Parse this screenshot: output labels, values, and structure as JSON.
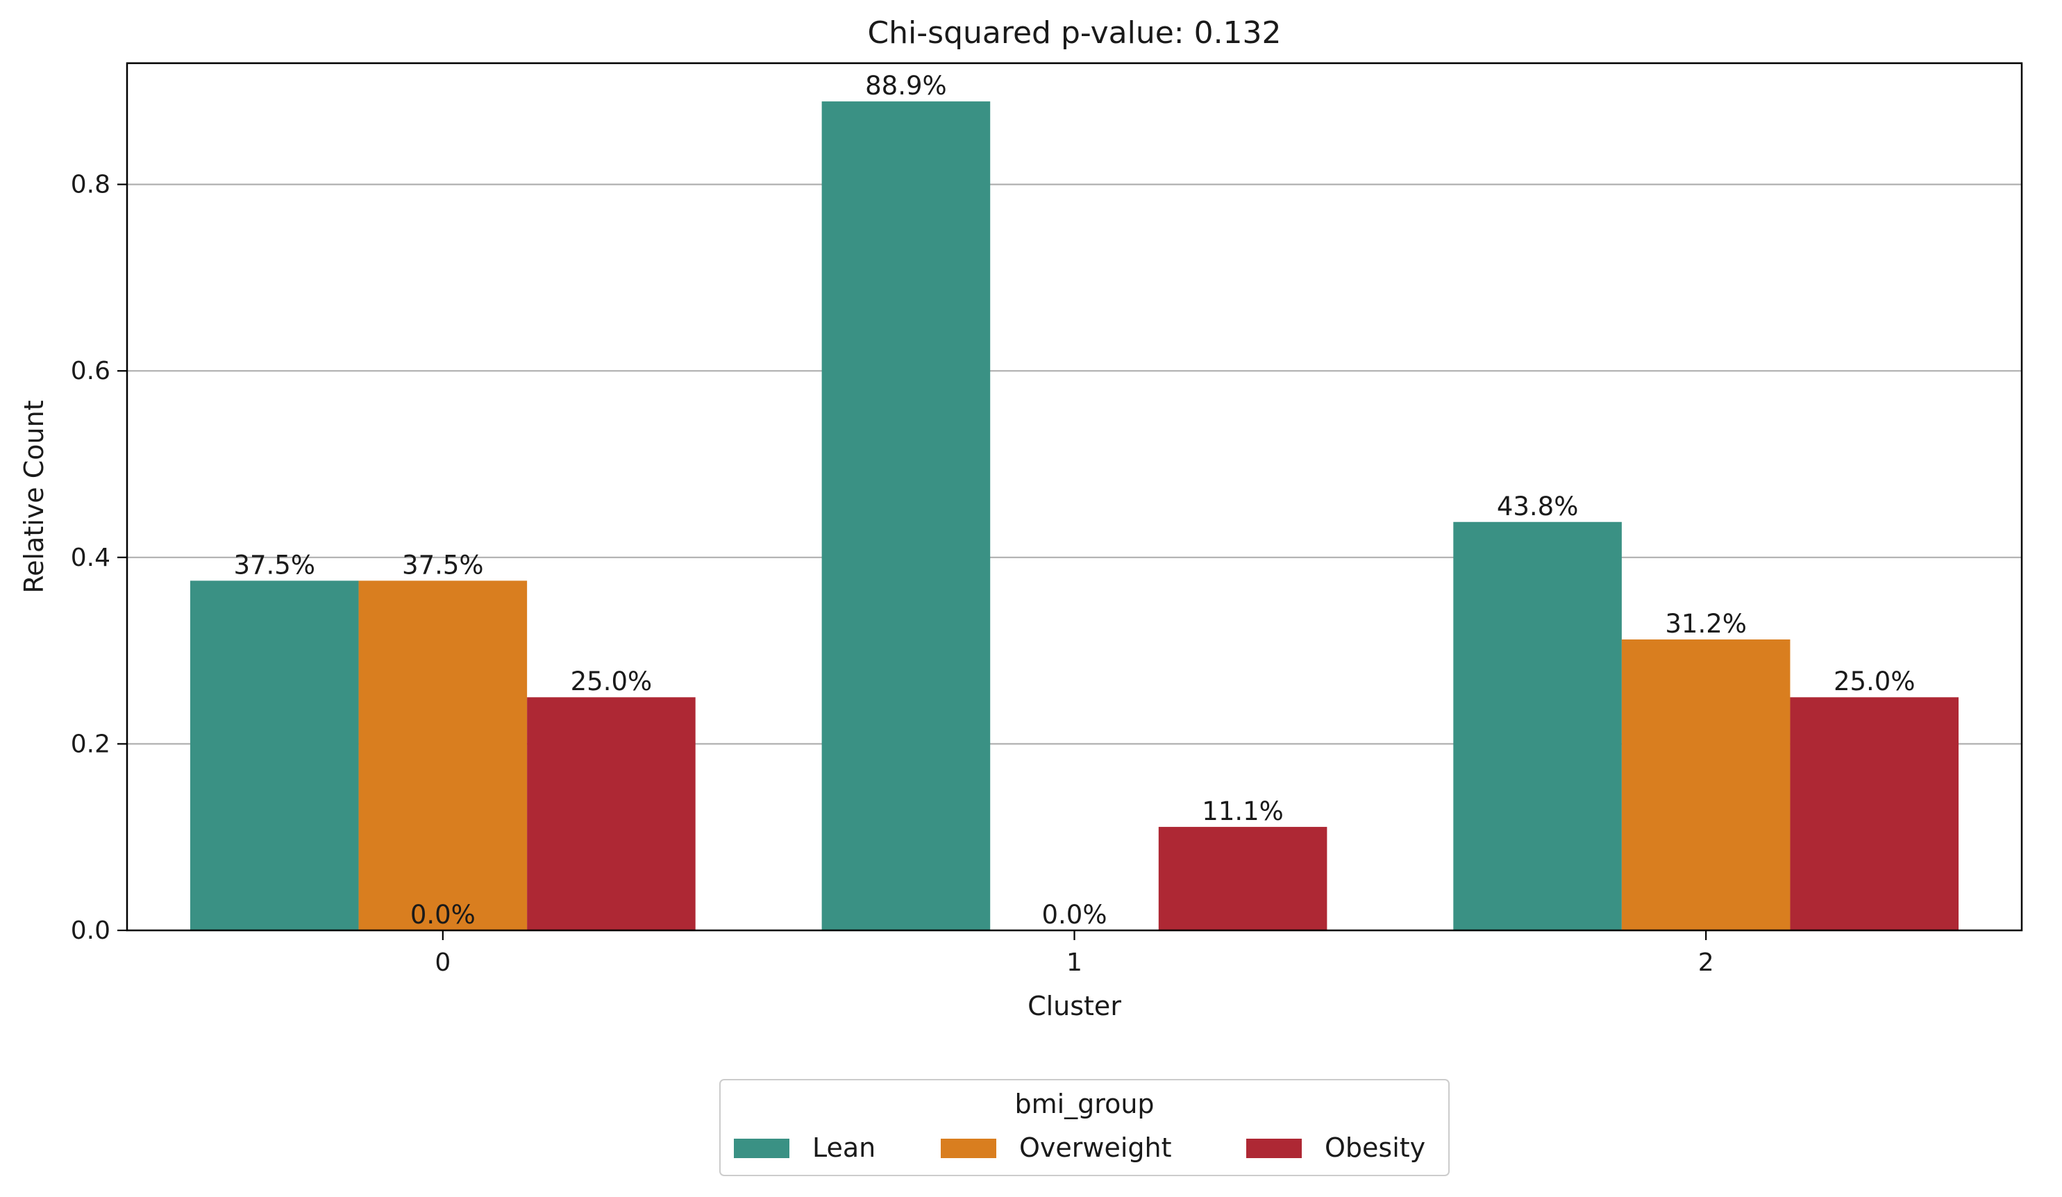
{
  "chart_data": {
    "type": "bar",
    "title": "Chi-squared p-value: 0.132",
    "xlabel": "Cluster",
    "ylabel": "Relative Count",
    "categories": [
      "0",
      "1",
      "2"
    ],
    "ylim": [
      0,
      0.93
    ],
    "yticks": [
      0.0,
      0.2,
      0.4,
      0.6,
      0.8
    ],
    "ytick_labels": [
      "0.0",
      "0.2",
      "0.4",
      "0.6",
      "0.8"
    ],
    "grid": "horizontal",
    "series": [
      {
        "name": "Lean",
        "color": "#3a9184",
        "values": [
          0.375,
          0.889,
          0.438
        ],
        "labels": [
          "37.5%",
          "88.9%",
          "43.8%"
        ]
      },
      {
        "name": "Overweight",
        "color": "#d97e1f",
        "values": [
          0.375,
          0.0,
          0.312
        ],
        "labels": [
          "37.5%",
          "0.0%",
          "31.2%"
        ]
      },
      {
        "name": "Obesity",
        "color": "#ae2834",
        "values": [
          0.25,
          0.111,
          0.25
        ],
        "labels": [
          "25.0%",
          "11.1%",
          "25.0%"
        ]
      }
    ],
    "extra_labels": [
      {
        "category": "0",
        "text": "0.0%"
      }
    ],
    "legend": {
      "title": "bmi_group",
      "placement": "bottom-center"
    }
  }
}
